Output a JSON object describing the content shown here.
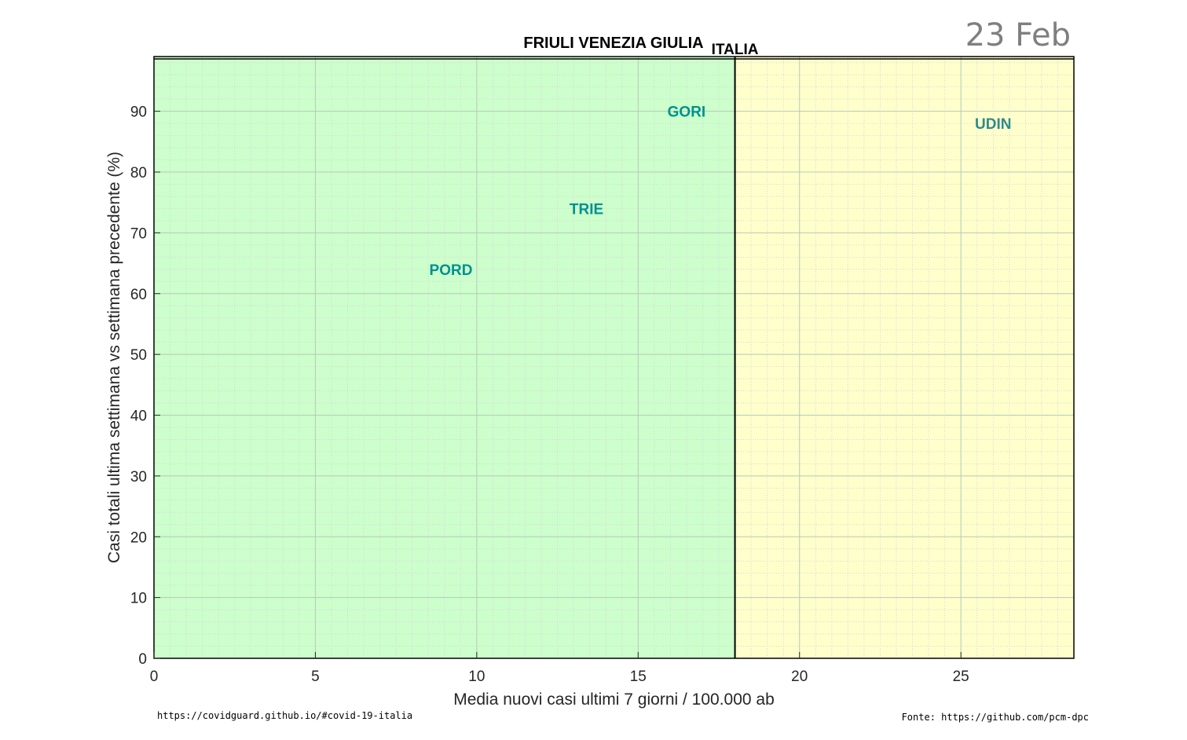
{
  "date_label": "23 Feb",
  "footer": {
    "left": "https://covidguard.github.io/#covid-19-italia",
    "right": "Fonte: https://github.com/pcm-dpc"
  },
  "chart_data": {
    "type": "scatter",
    "title": "FRIULI VENEZIA GIULIA",
    "xlabel": "Media nuovi casi ultimi 7 giorni / 100.000 ab",
    "ylabel": "Casi totali ultima settimana vs settimana precedente (%)",
    "xlim": [
      0,
      28.5
    ],
    "ylim": [
      0,
      99
    ],
    "x_ticks": [
      0,
      5,
      10,
      15,
      20,
      25
    ],
    "y_ticks": [
      0,
      10,
      20,
      30,
      40,
      50,
      60,
      70,
      80,
      90
    ],
    "grid": true,
    "reference_line": {
      "label": "ITALIA",
      "x": 18
    },
    "zones": [
      {
        "x_range": [
          0,
          18
        ],
        "color": "#ccffcc"
      },
      {
        "x_range": [
          18,
          28.5
        ],
        "color": "#ffffcc"
      }
    ],
    "points": [
      {
        "label": "GORI",
        "x": 16.5,
        "y": 90,
        "color": "#009090"
      },
      {
        "label": "UDIN",
        "x": 26,
        "y": 88,
        "color": "#2e8b8b"
      },
      {
        "label": "TRIE",
        "x": 13.4,
        "y": 74,
        "color": "#009090"
      },
      {
        "label": "PORD",
        "x": 9.2,
        "y": 64,
        "color": "#009090"
      }
    ]
  }
}
